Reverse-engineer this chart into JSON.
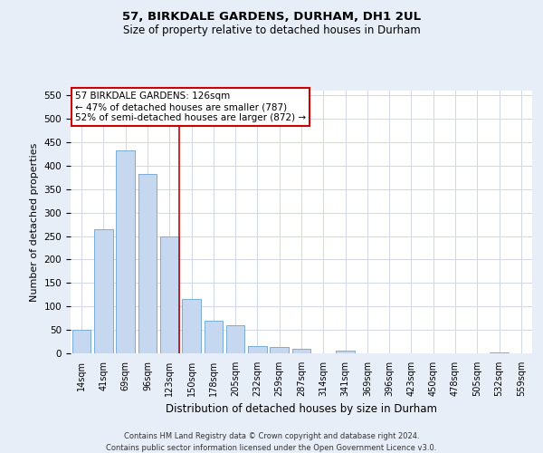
{
  "title1": "57, BIRKDALE GARDENS, DURHAM, DH1 2UL",
  "title2": "Size of property relative to detached houses in Durham",
  "xlabel": "Distribution of detached houses by size in Durham",
  "ylabel": "Number of detached properties",
  "categories": [
    "14sqm",
    "41sqm",
    "69sqm",
    "96sqm",
    "123sqm",
    "150sqm",
    "178sqm",
    "205sqm",
    "232sqm",
    "259sqm",
    "287sqm",
    "314sqm",
    "341sqm",
    "369sqm",
    "396sqm",
    "423sqm",
    "450sqm",
    "478sqm",
    "505sqm",
    "532sqm",
    "559sqm"
  ],
  "values": [
    50,
    265,
    432,
    382,
    250,
    115,
    70,
    60,
    15,
    13,
    10,
    0,
    6,
    0,
    0,
    0,
    0,
    0,
    0,
    2,
    0
  ],
  "bar_color": "#c5d8ef",
  "bar_edge_color": "#7aadd4",
  "subject_line_color": "#cc0000",
  "annotation_text": "57 BIRKDALE GARDENS: 126sqm\n← 47% of detached houses are smaller (787)\n52% of semi-detached houses are larger (872) →",
  "annotation_box_color": "#ffffff",
  "annotation_box_edge": "#cc0000",
  "ylim": [
    0,
    560
  ],
  "yticks": [
    0,
    50,
    100,
    150,
    200,
    250,
    300,
    350,
    400,
    450,
    500,
    550
  ],
  "grid_color": "#d0d8e4",
  "bg_color": "#e8eef7",
  "plot_bg_color": "#ffffff",
  "footnote1": "Contains HM Land Registry data © Crown copyright and database right 2024.",
  "footnote2": "Contains public sector information licensed under the Open Government Licence v3.0.",
  "red_line_index": 4.45
}
